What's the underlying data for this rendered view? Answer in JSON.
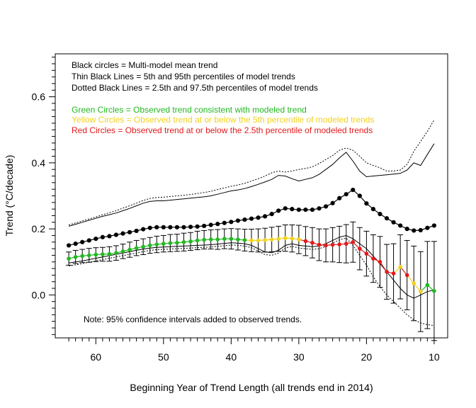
{
  "chart_data": {
    "type": "line",
    "xlabel": "Beginning Year of Trend Length (all trends end in 2014)",
    "ylabel": "Trend (°C/decade)",
    "xlim": [
      66,
      8
    ],
    "ylim": [
      -0.13,
      0.73
    ],
    "xticks": [
      60,
      50,
      40,
      30,
      20,
      10
    ],
    "xtick_labels": [
      "60",
      "50",
      "40",
      "30",
      "20",
      "10"
    ],
    "yticks": [
      0.0,
      0.2,
      0.4,
      0.6
    ],
    "ytick_labels": [
      "0.0",
      "0.2",
      "0.4",
      "0.6"
    ],
    "grid": false,
    "legend": {
      "position": "top-left",
      "lines": [
        {
          "text": "Black circles = Multi-model mean trend",
          "color": "#000000"
        },
        {
          "text": "Thin Black Lines = 5th and 95th percentiles of model trends",
          "color": "#000000"
        },
        {
          "text": "Dotted Black Lines = 2.5th and 97.5th percentiles of model trends",
          "color": "#000000"
        },
        {
          "text": "",
          "color": "#000000"
        },
        {
          "text": "Green Circles = Observed trend consistent with modeled trend",
          "color": "#22b822"
        },
        {
          "text": "Yellow Circles = Observed trend at or below the 5th percentile of modeled trends",
          "color": "#f2d21b"
        },
        {
          "text": "Red Circles = Observed trend at or below the 2.5th percentile of modeled trends",
          "color": "#e31a1c"
        }
      ]
    },
    "note": "Note: 95% confidence intervals added to observed trends.",
    "colors": {
      "mean": "#000000",
      "green": "#22b822",
      "yellow": "#f2d21b",
      "red": "#e31a1c",
      "axis": "#000000"
    },
    "x": [
      64,
      63,
      62,
      61,
      60,
      59,
      58,
      57,
      56,
      55,
      54,
      53,
      52,
      51,
      50,
      49,
      48,
      47,
      46,
      45,
      44,
      43,
      42,
      41,
      40,
      39,
      38,
      37,
      36,
      35,
      34,
      33,
      32,
      31,
      30,
      29,
      28,
      27,
      26,
      25,
      24,
      23,
      22,
      21,
      20,
      19,
      18,
      17,
      16,
      15,
      14,
      13,
      12,
      11,
      10
    ],
    "series": [
      {
        "name": "Multi-model mean trend",
        "values": [
          0.15,
          0.155,
          0.16,
          0.165,
          0.17,
          0.175,
          0.178,
          0.182,
          0.186,
          0.19,
          0.194,
          0.199,
          0.203,
          0.205,
          0.205,
          0.205,
          0.205,
          0.205,
          0.206,
          0.207,
          0.209,
          0.212,
          0.215,
          0.218,
          0.221,
          0.225,
          0.228,
          0.231,
          0.234,
          0.238,
          0.245,
          0.255,
          0.262,
          0.26,
          0.258,
          0.258,
          0.258,
          0.262,
          0.268,
          0.278,
          0.293,
          0.305,
          0.318,
          0.3,
          0.277,
          0.26,
          0.245,
          0.232,
          0.22,
          0.21,
          0.2,
          0.195,
          0.196,
          0.203,
          0.21
        ]
      },
      {
        "name": "5th percentile",
        "values": [
          0.097,
          0.1,
          0.103,
          0.107,
          0.111,
          0.115,
          0.119,
          0.123,
          0.127,
          0.131,
          0.135,
          0.139,
          0.142,
          0.144,
          0.145,
          0.146,
          0.147,
          0.148,
          0.149,
          0.15,
          0.151,
          0.152,
          0.154,
          0.156,
          0.158,
          0.157,
          0.155,
          0.15,
          0.14,
          0.13,
          0.128,
          0.135,
          0.15,
          0.155,
          0.15,
          0.148,
          0.146,
          0.148,
          0.155,
          0.165,
          0.175,
          0.18,
          0.17,
          0.155,
          0.14,
          0.118,
          0.095,
          0.07,
          0.045,
          0.02,
          0.0,
          -0.01,
          0.0,
          0.01,
          0.015
        ]
      },
      {
        "name": "95th percentile",
        "values": [
          0.208,
          0.214,
          0.22,
          0.226,
          0.232,
          0.238,
          0.243,
          0.248,
          0.255,
          0.262,
          0.27,
          0.278,
          0.283,
          0.285,
          0.285,
          0.287,
          0.289,
          0.291,
          0.293,
          0.295,
          0.297,
          0.3,
          0.305,
          0.31,
          0.315,
          0.318,
          0.322,
          0.328,
          0.335,
          0.342,
          0.35,
          0.362,
          0.36,
          0.352,
          0.345,
          0.35,
          0.355,
          0.365,
          0.38,
          0.395,
          0.415,
          0.432,
          0.405,
          0.375,
          0.358,
          0.36,
          0.362,
          0.364,
          0.366,
          0.368,
          0.378,
          0.4,
          0.392,
          0.425,
          0.458
        ]
      },
      {
        "name": "2.5th percentile",
        "values": [
          0.088,
          0.091,
          0.095,
          0.099,
          0.103,
          0.107,
          0.111,
          0.115,
          0.119,
          0.123,
          0.127,
          0.131,
          0.135,
          0.137,
          0.138,
          0.139,
          0.14,
          0.141,
          0.142,
          0.143,
          0.144,
          0.145,
          0.147,
          0.149,
          0.151,
          0.15,
          0.148,
          0.143,
          0.133,
          0.122,
          0.12,
          0.127,
          0.142,
          0.147,
          0.142,
          0.14,
          0.138,
          0.14,
          0.147,
          0.157,
          0.167,
          0.172,
          0.15,
          0.12,
          0.09,
          0.055,
          0.025,
          0.0,
          -0.02,
          -0.04,
          -0.06,
          -0.075,
          -0.085,
          -0.09,
          -0.093
        ]
      },
      {
        "name": "97.5th percentile",
        "values": [
          0.212,
          0.218,
          0.224,
          0.23,
          0.236,
          0.243,
          0.249,
          0.255,
          0.263,
          0.27,
          0.278,
          0.286,
          0.292,
          0.295,
          0.296,
          0.298,
          0.3,
          0.302,
          0.304,
          0.307,
          0.31,
          0.314,
          0.319,
          0.324,
          0.329,
          0.333,
          0.338,
          0.345,
          0.352,
          0.36,
          0.37,
          0.375,
          0.372,
          0.375,
          0.38,
          0.383,
          0.388,
          0.398,
          0.41,
          0.422,
          0.438,
          0.445,
          0.438,
          0.42,
          0.4,
          0.392,
          0.385,
          0.375,
          0.375,
          0.378,
          0.395,
          0.435,
          0.465,
          0.495,
          0.53
        ]
      },
      {
        "name": "Observed trend",
        "values": [
          0.11,
          0.115,
          0.118,
          0.12,
          0.122,
          0.123,
          0.124,
          0.127,
          0.132,
          0.137,
          0.142,
          0.146,
          0.15,
          0.153,
          0.155,
          0.157,
          0.158,
          0.16,
          0.162,
          0.165,
          0.167,
          0.168,
          0.168,
          0.17,
          0.17,
          0.168,
          0.166,
          0.165,
          0.165,
          0.166,
          0.168,
          0.17,
          0.172,
          0.171,
          0.168,
          0.163,
          0.158,
          0.152,
          0.15,
          0.152,
          0.153,
          0.155,
          0.16,
          0.14,
          0.125,
          0.11,
          0.1,
          0.07,
          0.065,
          0.085,
          0.06,
          0.035,
          0.01,
          0.03,
          0.012
        ],
        "ci_half_width": [
          0.02,
          0.02,
          0.02,
          0.021,
          0.021,
          0.021,
          0.022,
          0.022,
          0.022,
          0.023,
          0.023,
          0.024,
          0.024,
          0.025,
          0.025,
          0.026,
          0.026,
          0.027,
          0.027,
          0.028,
          0.028,
          0.029,
          0.03,
          0.03,
          0.031,
          0.032,
          0.033,
          0.034,
          0.035,
          0.036,
          0.037,
          0.038,
          0.04,
          0.041,
          0.043,
          0.044,
          0.046,
          0.048,
          0.05,
          0.052,
          0.055,
          0.058,
          0.061,
          0.064,
          0.068,
          0.072,
          0.077,
          0.083,
          0.09,
          0.097,
          0.105,
          0.113,
          0.121,
          0.132,
          0.15
        ],
        "status": [
          "green",
          "green",
          "green",
          "green",
          "green",
          "green",
          "green",
          "green",
          "green",
          "green",
          "green",
          "green",
          "green",
          "green",
          "green",
          "green",
          "green",
          "green",
          "green",
          "green",
          "green",
          "green",
          "green",
          "green",
          "green",
          "green",
          "green",
          "yellow",
          "yellow",
          "yellow",
          "yellow",
          "yellow",
          "yellow",
          "yellow",
          "yellow",
          "red",
          "red",
          "red",
          "red",
          "red",
          "red",
          "red",
          "red",
          "red",
          "red",
          "red",
          "red",
          "red",
          "red",
          "yellow",
          "red",
          "yellow",
          "yellow",
          "green",
          "green"
        ]
      }
    ]
  }
}
